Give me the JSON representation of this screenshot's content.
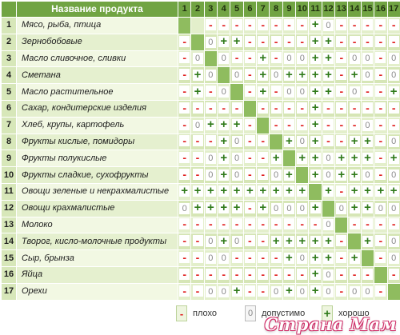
{
  "table": {
    "header_name": "Название продукта",
    "columns": [
      "1",
      "2",
      "3",
      "4",
      "5",
      "6",
      "7",
      "8",
      "9",
      "10",
      "11",
      "12",
      "13",
      "14",
      "15",
      "16",
      "17"
    ],
    "rows": [
      {
        "num": "1",
        "name": "Мясо, рыба, птица",
        "cells": [
          "D",
          "",
          "-",
          "-",
          "-",
          "-",
          "-",
          "-",
          "-",
          "-",
          "+",
          "0",
          "-",
          "-",
          "-",
          "-",
          "-"
        ]
      },
      {
        "num": "2",
        "name": "Зернобобовые",
        "cells": [
          "-",
          "D",
          "0",
          "+",
          "+",
          "-",
          "-",
          "-",
          "-",
          "-",
          "+",
          "+",
          "-",
          "-",
          "-",
          "-",
          "-"
        ]
      },
      {
        "num": "3",
        "name": "Масло сливочное, сливки",
        "cells": [
          "-",
          "0",
          "D",
          "0",
          "-",
          "-",
          "+",
          "-",
          "0",
          "0",
          "+",
          "+",
          "-",
          "0",
          "0",
          "-",
          "0"
        ]
      },
      {
        "num": "4",
        "name": "Сметана",
        "cells": [
          "-",
          "+",
          "0",
          "D",
          "0",
          "-",
          "+",
          "0",
          "+",
          "+",
          "+",
          "+",
          "-",
          "+",
          "0",
          "-",
          "0"
        ]
      },
      {
        "num": "5",
        "name": "Масло растительное",
        "cells": [
          "-",
          "+",
          "-",
          "0",
          "D",
          "-",
          "+",
          "-",
          "0",
          "0",
          "+",
          "+",
          "-",
          "0",
          "-",
          "-",
          "+"
        ]
      },
      {
        "num": "6",
        "name": "Сахар, кондитерские изделия",
        "cells": [
          "-",
          "-",
          "-",
          "-",
          "-",
          "D",
          "-",
          "-",
          "-",
          "-",
          "+",
          "-",
          "-",
          "-",
          "-",
          "-",
          "-"
        ]
      },
      {
        "num": "7",
        "name": "Хлеб, крупы, картофель",
        "cells": [
          "-",
          "0",
          "+",
          "+",
          "+",
          "-",
          "D",
          "-",
          "-",
          "-",
          "+",
          "-",
          "-",
          "-",
          "0",
          "-",
          "-"
        ]
      },
      {
        "num": "8",
        "name": "Фрукты кислые, помидоры",
        "cells": [
          "-",
          "-",
          "-",
          "+",
          "0",
          "-",
          "-",
          "D",
          "+",
          "0",
          "+",
          "-",
          "-",
          "+",
          "+",
          "-",
          "0"
        ]
      },
      {
        "num": "9",
        "name": "Фрукты полукислые",
        "cells": [
          "-",
          "-",
          "0",
          "+",
          "0",
          "-",
          "-",
          "+",
          "D",
          "+",
          "+",
          "0",
          "+",
          "+",
          "+",
          "-",
          "+"
        ]
      },
      {
        "num": "10",
        "name": "Фрукты сладкие, сухофрукты",
        "cells": [
          "-",
          "-",
          "0",
          "+",
          "0",
          "-",
          "-",
          "0",
          "+",
          "D",
          "+",
          "0",
          "+",
          "+",
          "0",
          "-",
          "0"
        ]
      },
      {
        "num": "11",
        "name": "Овощи зеленые и некрахмалистые",
        "cells": [
          "+",
          "+",
          "+",
          "+",
          "+",
          "+",
          "+",
          "+",
          "+",
          "+",
          "D",
          "+",
          "-",
          "+",
          "+",
          "+",
          "+"
        ]
      },
      {
        "num": "12",
        "name": "Овощи крахмалистые",
        "cells": [
          "0",
          "+",
          "+",
          "+",
          "+",
          "-",
          "+",
          "0",
          "0",
          "0",
          "+",
          "D",
          "0",
          "+",
          "+",
          "0",
          "0"
        ]
      },
      {
        "num": "13",
        "name": "Молоко",
        "cells": [
          "-",
          "-",
          "-",
          "-",
          "-",
          "-",
          "-",
          "-",
          "-",
          "-",
          "-",
          "0",
          "D",
          "-",
          "-",
          "-",
          "-"
        ]
      },
      {
        "num": "14",
        "name": "Творог, кисло-молочные продукты",
        "cells": [
          "-",
          "-",
          "0",
          "+",
          "0",
          "-",
          "-",
          "+",
          "+",
          "+",
          "+",
          "+",
          "-",
          "D",
          "+",
          "-",
          "0"
        ]
      },
      {
        "num": "15",
        "name": "Сыр, брынза",
        "cells": [
          "-",
          "-",
          "0",
          "0",
          "-",
          "-",
          "-",
          "-",
          "+",
          "0",
          "+",
          "+",
          "-",
          "+",
          "D",
          "-",
          "0"
        ]
      },
      {
        "num": "16",
        "name": "Яйца",
        "cells": [
          "-",
          "-",
          "-",
          "-",
          "-",
          "-",
          "-",
          "-",
          "-",
          "-",
          "+",
          "0",
          "-",
          "-",
          "-",
          "D",
          "-"
        ]
      },
      {
        "num": "17",
        "name": "Орехи",
        "cells": [
          "-",
          "-",
          "0",
          "0",
          "+",
          "-",
          "-",
          "0",
          "+",
          "0",
          "+",
          "0",
          "-",
          "0",
          "0",
          "-",
          "D"
        ]
      }
    ]
  },
  "legend": {
    "bad_label": "плохо",
    "ok_label": "допустимо",
    "good_label": "хорошо",
    "bad_symbol": "-",
    "ok_symbol": "0",
    "good_symbol": "+"
  },
  "watermark": "Страна Мам",
  "colors": {
    "header_green": "#71a443",
    "diagonal_green": "#8fbc5f",
    "bad_red": "#e02020",
    "good_green": "#2f7a1a"
  }
}
